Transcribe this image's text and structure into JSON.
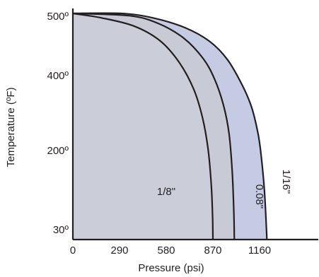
{
  "chart_data": {
    "type": "area",
    "title": "",
    "xlabel": "Pressure (psi)",
    "ylabel": "Temperature (ºF)",
    "x_ticks": [
      {
        "value": 0,
        "label": "0"
      },
      {
        "value": 290,
        "label": "290"
      },
      {
        "value": 580,
        "label": "580"
      },
      {
        "value": 870,
        "label": "870"
      },
      {
        "value": 1160,
        "label": "1160"
      }
    ],
    "y_ticks": [
      {
        "value": 30,
        "label": "30º"
      },
      {
        "value": 200,
        "label": "200º"
      },
      {
        "value": 400,
        "label": "400º"
      },
      {
        "value": 500,
        "label": "500º"
      }
    ],
    "xlim": [
      0,
      1450
    ],
    "ylim": [
      0,
      500
    ],
    "grid": false,
    "legend": "none",
    "series": [
      {
        "name": "1/16\"",
        "label": "1/16\"",
        "fill": "#c4cbe2",
        "points": [
          [
            0,
            500
          ],
          [
            300,
            500
          ],
          [
            500,
            490
          ],
          [
            700,
            468
          ],
          [
            850,
            438
          ],
          [
            960,
            398
          ],
          [
            1050,
            343
          ],
          [
            1110,
            293
          ],
          [
            1150,
            235
          ],
          [
            1170,
            185
          ],
          [
            1190,
            108
          ],
          [
            1203,
            20
          ],
          [
            1205,
            0
          ]
        ]
      },
      {
        "name": "0.08\"",
        "label": "0.08\"",
        "fill": "#c8cbd6",
        "points": [
          [
            0,
            500
          ],
          [
            350,
            495
          ],
          [
            530,
            478
          ],
          [
            690,
            445
          ],
          [
            810,
            400
          ],
          [
            880,
            355
          ],
          [
            935,
            298
          ],
          [
            970,
            235
          ],
          [
            990,
            150
          ],
          [
            1000,
            60
          ],
          [
            1003,
            0
          ]
        ]
      },
      {
        "name": "1/8\"",
        "label": "1/8\"",
        "fill": "#cbced8",
        "points": [
          [
            0,
            500
          ],
          [
            180,
            490
          ],
          [
            380,
            472
          ],
          [
            540,
            440
          ],
          [
            660,
            392
          ],
          [
            750,
            333
          ],
          [
            805,
            270
          ],
          [
            840,
            200
          ],
          [
            860,
            120
          ],
          [
            868,
            50
          ],
          [
            870,
            0
          ]
        ]
      }
    ]
  }
}
